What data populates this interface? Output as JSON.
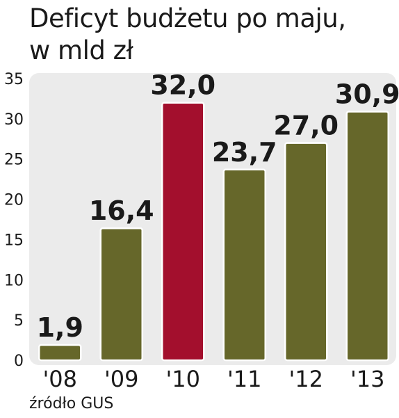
{
  "header": {
    "title_line1": "Deficyt budżetu po maju,",
    "title_line2": "w mld zł"
  },
  "footer": {
    "source": "źródło GUS"
  },
  "colors": {
    "bar": "#66672a",
    "highlight": "#a30f2d",
    "panel": "#ebebeb"
  },
  "chart_data": {
    "type": "bar",
    "title": "Deficyt budżetu po maju, w mld zł",
    "xlabel": "",
    "ylabel": "",
    "categories": [
      "'08",
      "'09",
      "'10",
      "'11",
      "'12",
      "'13"
    ],
    "values": [
      1.9,
      16.4,
      32.0,
      23.7,
      27.0,
      30.9
    ],
    "value_labels": [
      "1,9",
      "16,4",
      "32,0",
      "23,7",
      "27,0",
      "30,9"
    ],
    "highlight_index": 2,
    "ylim": [
      0,
      35
    ],
    "yticks": [
      0,
      5,
      10,
      15,
      20,
      25,
      30,
      35
    ],
    "grid": false,
    "legend": "none"
  }
}
